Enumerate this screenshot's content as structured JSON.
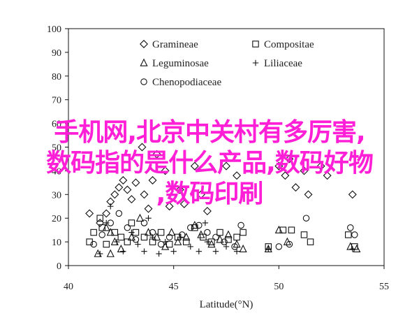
{
  "chart_data": {
    "type": "scatter",
    "xlabel": "Latitude(°N)",
    "ylabel": "",
    "xlim": [
      40,
      55
    ],
    "ylim": [
      0,
      100
    ],
    "x_ticks": [
      "40",
      "45",
      "50",
      "55"
    ],
    "y_ticks": [
      "0",
      "10",
      "20",
      "30",
      "40",
      "50",
      "60",
      "70",
      "80",
      "90",
      "100"
    ],
    "legend_position": "top-left",
    "series": [
      {
        "name": "Gramineae",
        "marker": "diamond",
        "points": [
          [
            41.8,
            22
          ],
          [
            42.0,
            27
          ],
          [
            42.2,
            30
          ],
          [
            42.4,
            33
          ],
          [
            42.6,
            36
          ],
          [
            42.8,
            32
          ],
          [
            43.0,
            28
          ],
          [
            43.2,
            35
          ],
          [
            43.5,
            50
          ],
          [
            43.6,
            30
          ],
          [
            43.8,
            24
          ],
          [
            44.0,
            36
          ],
          [
            44.2,
            47
          ],
          [
            44.6,
            40
          ],
          [
            44.8,
            25
          ],
          [
            45.3,
            32
          ],
          [
            45.5,
            26
          ],
          [
            46.0,
            42
          ],
          [
            46.3,
            30
          ],
          [
            47.5,
            42
          ],
          [
            48.0,
            38
          ],
          [
            50.0,
            42
          ],
          [
            50.3,
            38
          ],
          [
            50.5,
            45
          ],
          [
            50.8,
            33
          ],
          [
            51.2,
            40
          ],
          [
            51.4,
            30
          ],
          [
            52.0,
            42
          ],
          [
            52.3,
            38
          ],
          [
            53.5,
            30
          ],
          [
            41.0,
            22
          ],
          [
            41.5,
            18
          ],
          [
            46.6,
            23
          ]
        ]
      },
      {
        "name": "Compositae",
        "marker": "square",
        "points": [
          [
            41.0,
            10
          ],
          [
            41.2,
            14
          ],
          [
            41.6,
            16
          ],
          [
            41.8,
            9
          ],
          [
            42.2,
            14
          ],
          [
            42.5,
            12
          ],
          [
            42.8,
            10
          ],
          [
            43.2,
            14
          ],
          [
            43.6,
            12
          ],
          [
            44.0,
            10
          ],
          [
            44.4,
            14
          ],
          [
            44.8,
            9
          ],
          [
            45.2,
            12
          ],
          [
            45.6,
            10
          ],
          [
            46.0,
            16
          ],
          [
            46.4,
            12
          ],
          [
            46.8,
            10
          ],
          [
            47.2,
            14
          ],
          [
            47.6,
            11
          ],
          [
            48.0,
            12
          ],
          [
            48.3,
            14
          ],
          [
            49.5,
            8
          ],
          [
            50.2,
            15
          ],
          [
            50.6,
            15
          ],
          [
            51.2,
            13
          ],
          [
            51.5,
            10
          ],
          [
            53.3,
            13
          ],
          [
            53.6,
            8
          ],
          [
            41.5,
            20
          ],
          [
            43.0,
            18
          ]
        ]
      },
      {
        "name": "Leguminosae",
        "marker": "triangle",
        "points": [
          [
            41.8,
            16
          ],
          [
            42.0,
            14
          ],
          [
            42.2,
            10
          ],
          [
            42.5,
            7
          ],
          [
            43.0,
            12
          ],
          [
            43.4,
            20
          ],
          [
            43.8,
            14
          ],
          [
            44.2,
            12
          ],
          [
            44.6,
            8
          ],
          [
            44.9,
            14
          ],
          [
            45.2,
            10
          ],
          [
            45.6,
            12
          ],
          [
            46.0,
            17
          ],
          [
            46.3,
            13
          ],
          [
            46.8,
            9
          ],
          [
            47.2,
            11
          ],
          [
            47.6,
            13
          ],
          [
            48.0,
            9
          ],
          [
            48.3,
            7
          ],
          [
            49.5,
            7
          ],
          [
            50.0,
            15
          ],
          [
            50.4,
            10
          ],
          [
            53.4,
            8
          ],
          [
            53.7,
            7
          ],
          [
            41.4,
            5
          ],
          [
            42.0,
            5
          ]
        ]
      },
      {
        "name": "Liliaceae",
        "marker": "plus",
        "points": [
          [
            41.5,
            5
          ],
          [
            41.8,
            18
          ],
          [
            42.0,
            25
          ],
          [
            42.3,
            10
          ],
          [
            42.6,
            6
          ],
          [
            43.0,
            14
          ],
          [
            43.3,
            9
          ],
          [
            43.6,
            6
          ],
          [
            44.0,
            12
          ],
          [
            44.3,
            5
          ],
          [
            44.6,
            10
          ],
          [
            45.0,
            6
          ],
          [
            45.3,
            12
          ],
          [
            45.8,
            8
          ],
          [
            46.2,
            6
          ],
          [
            46.6,
            10
          ],
          [
            47.0,
            6
          ],
          [
            47.5,
            8
          ],
          [
            48.0,
            6
          ],
          [
            49.5,
            7
          ],
          [
            53.5,
            7
          ],
          [
            43.8,
            20
          ],
          [
            46.5,
            18
          ]
        ]
      },
      {
        "name": "Chenopodiaceae",
        "marker": "circle",
        "points": [
          [
            41.2,
            9
          ],
          [
            41.6,
            13
          ],
          [
            42.0,
            18
          ],
          [
            42.4,
            22
          ],
          [
            42.8,
            16
          ],
          [
            43.2,
            11
          ],
          [
            43.6,
            18
          ],
          [
            44.0,
            14
          ],
          [
            44.4,
            9
          ],
          [
            44.8,
            12
          ],
          [
            45.4,
            13
          ],
          [
            45.8,
            16
          ],
          [
            46.2,
            17
          ],
          [
            46.6,
            14
          ],
          [
            47.0,
            12
          ],
          [
            47.4,
            10
          ],
          [
            47.9,
            8
          ],
          [
            48.2,
            17
          ],
          [
            50.0,
            8
          ],
          [
            50.5,
            9
          ],
          [
            51.3,
            20
          ],
          [
            53.4,
            16
          ],
          [
            53.6,
            13
          ]
        ]
      }
    ]
  },
  "overlay": {
    "line1": "手机网,北京中关村有多厉害,",
    "line2": "数码指的是什么产品,数码好物",
    "line3": ",数码印刷"
  }
}
